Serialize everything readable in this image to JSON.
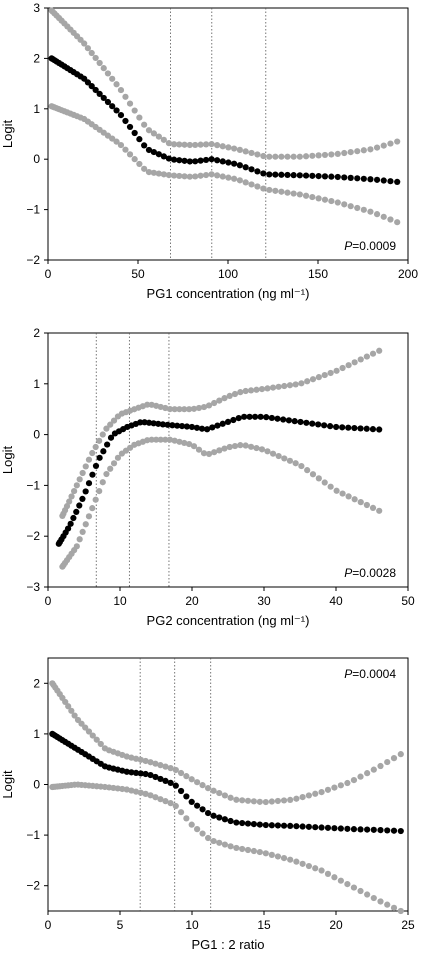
{
  "chart_data": [
    {
      "type": "scatter",
      "xlabel": "PG1 concentration (ng ml⁻¹)",
      "ylabel": "Logit",
      "xlim": [
        0,
        200
      ],
      "ylim": [
        -2,
        3
      ],
      "xticks": [
        "0",
        "50",
        "100",
        "150",
        "200"
      ],
      "yticks": [
        "−2",
        "−1",
        "0",
        "1",
        "2",
        "3"
      ],
      "vlines": [
        68,
        91,
        121
      ],
      "annotation": {
        "p_label": "P",
        "p_value": "=0.0009",
        "position": "bottom-right"
      },
      "series": [
        {
          "role": "upper",
          "color": "#a6a6a6",
          "x": [
            2,
            20,
            40,
            55,
            68,
            80,
            91,
            105,
            121,
            140,
            160,
            180,
            194
          ],
          "y": [
            2.95,
            2.3,
            1.4,
            0.6,
            0.3,
            0.28,
            0.3,
            0.2,
            0.05,
            0.05,
            0.1,
            0.2,
            0.35
          ]
        },
        {
          "role": "estimate",
          "color": "#000000",
          "x": [
            2,
            20,
            40,
            55,
            68,
            80,
            91,
            105,
            121,
            140,
            160,
            180,
            194
          ],
          "y": [
            2.0,
            1.6,
            0.9,
            0.2,
            0.0,
            -0.05,
            0.0,
            -0.1,
            -0.3,
            -0.32,
            -0.35,
            -0.4,
            -0.45
          ]
        },
        {
          "role": "lower",
          "color": "#a6a6a6",
          "x": [
            2,
            20,
            40,
            55,
            68,
            80,
            91,
            105,
            121,
            140,
            160,
            180,
            194
          ],
          "y": [
            1.05,
            0.8,
            0.3,
            -0.25,
            -0.32,
            -0.35,
            -0.3,
            -0.4,
            -0.6,
            -0.7,
            -0.85,
            -1.05,
            -1.25
          ]
        }
      ]
    },
    {
      "type": "scatter",
      "xlabel": "PG2 concentration (ng ml⁻¹)",
      "ylabel": "Logit",
      "xlim": [
        0,
        50
      ],
      "ylim": [
        -3,
        2
      ],
      "xticks": [
        "0",
        "10",
        "20",
        "30",
        "40",
        "50"
      ],
      "yticks": [
        "−3",
        "−2",
        "−1",
        "0",
        "1",
        "2"
      ],
      "vlines": [
        6.7,
        11.3,
        16.8
      ],
      "annotation": {
        "p_label": "P",
        "p_value": "=0.0028",
        "position": "bottom-right"
      },
      "series": [
        {
          "role": "upper",
          "color": "#a6a6a6",
          "x": [
            2,
            4,
            6,
            8,
            10,
            12,
            14,
            17,
            20,
            22,
            25,
            27,
            30,
            35,
            40,
            46
          ],
          "y": [
            -1.6,
            -1.0,
            -0.4,
            0.1,
            0.4,
            0.5,
            0.6,
            0.5,
            0.5,
            0.55,
            0.75,
            0.85,
            0.9,
            1.0,
            1.25,
            1.65
          ]
        },
        {
          "role": "estimate",
          "color": "#000000",
          "x": [
            1.5,
            3,
            5,
            7,
            9,
            11,
            13,
            16,
            20,
            22,
            25,
            27,
            30,
            35,
            40,
            46
          ],
          "y": [
            -2.15,
            -1.8,
            -1.2,
            -0.5,
            0.0,
            0.15,
            0.25,
            0.2,
            0.15,
            0.1,
            0.25,
            0.35,
            0.35,
            0.25,
            0.15,
            0.1
          ]
        },
        {
          "role": "lower",
          "color": "#a6a6a6",
          "x": [
            2,
            4,
            6,
            8,
            10,
            12,
            14,
            17,
            20,
            22,
            25,
            27,
            30,
            35,
            40,
            46
          ],
          "y": [
            -2.6,
            -2.2,
            -1.5,
            -0.8,
            -0.4,
            -0.2,
            -0.1,
            -0.1,
            -0.2,
            -0.4,
            -0.25,
            -0.2,
            -0.3,
            -0.6,
            -1.1,
            -1.5
          ]
        }
      ]
    },
    {
      "type": "scatter",
      "xlabel": "PG1 : 2 ratio",
      "ylabel": "Logit",
      "xlim": [
        0,
        25
      ],
      "ylim": [
        -2.5,
        2.5
      ],
      "xticks": [
        "0",
        "5",
        "10",
        "15",
        "20",
        "25"
      ],
      "yticks": [
        "−2",
        "−1",
        "0",
        "1",
        "2"
      ],
      "vlines": [
        6.4,
        8.8,
        11.3
      ],
      "annotation": {
        "p_label": "P",
        "p_value": "=0.0004",
        "position": "top-right"
      },
      "series": [
        {
          "role": "upper",
          "color": "#a6a6a6",
          "x": [
            0.3,
            2,
            4,
            5.5,
            7,
            8.8,
            10,
            11.3,
            13,
            15,
            17,
            19,
            21,
            23,
            24.5
          ],
          "y": [
            2.0,
            1.3,
            0.7,
            0.55,
            0.45,
            0.3,
            0.1,
            -0.1,
            -0.3,
            -0.35,
            -0.3,
            -0.15,
            0.05,
            0.35,
            0.6
          ]
        },
        {
          "role": "estimate",
          "color": "#000000",
          "x": [
            0.3,
            2,
            4,
            5.5,
            7,
            8.8,
            10,
            11.3,
            13,
            15,
            17,
            19,
            21,
            23,
            24.5
          ],
          "y": [
            1.0,
            0.7,
            0.35,
            0.25,
            0.2,
            0.0,
            -0.35,
            -0.6,
            -0.75,
            -0.8,
            -0.82,
            -0.85,
            -0.88,
            -0.9,
            -0.92
          ]
        },
        {
          "role": "lower",
          "color": "#a6a6a6",
          "x": [
            0.3,
            2,
            4,
            5.5,
            7,
            8.8,
            10,
            11.3,
            13,
            15,
            17,
            19,
            21,
            23,
            24.5
          ],
          "y": [
            -0.05,
            0.0,
            -0.05,
            -0.1,
            -0.2,
            -0.4,
            -0.8,
            -1.1,
            -1.25,
            -1.35,
            -1.5,
            -1.7,
            -2.0,
            -2.3,
            -2.5
          ]
        }
      ]
    }
  ]
}
